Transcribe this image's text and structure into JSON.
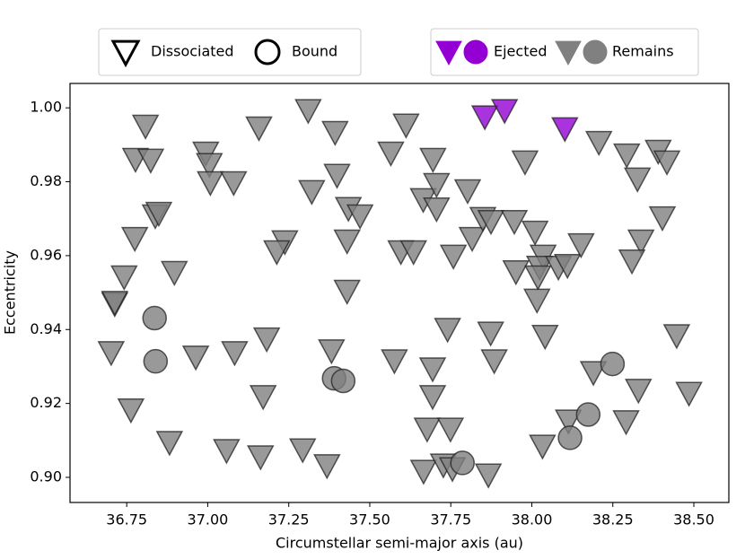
{
  "chart_data": {
    "type": "scatter",
    "xlabel": "Circumstellar semi-major axis (au)",
    "ylabel": "Eccentricity",
    "xlim": [
      36.575,
      38.608
    ],
    "ylim": [
      0.8932,
      1.0066
    ],
    "xticks": [
      36.75,
      {
        "value": 37.0,
        "label": "37.00"
      },
      37.25,
      {
        "value": 37.5,
        "label": "37.50"
      },
      37.75,
      {
        "value": 38.0,
        "label": "38.00"
      },
      38.25,
      {
        "value": 38.5,
        "label": "38.50"
      }
    ],
    "yticks": [
      {
        "value": 0.9,
        "label": "0.90"
      },
      0.92,
      0.94,
      0.96,
      0.98,
      {
        "value": 1.0,
        "label": "1.00"
      }
    ],
    "legend": {
      "shapes": [
        {
          "label": "Dissociated",
          "marker": "v"
        },
        {
          "label": "Bound",
          "marker": "o"
        }
      ],
      "colors": [
        {
          "label": "Ejected",
          "color": "#9400d3"
        },
        {
          "label": "Remains",
          "color": "#808080"
        }
      ]
    },
    "series": [
      {
        "marker": "v",
        "color": "#808080",
        "x": [
          36.808,
          36.777,
          36.824,
          36.838,
          36.849,
          36.775,
          36.742,
          36.897,
          36.713,
          36.713,
          36.702,
          36.763,
          36.882,
          36.994,
          37.005,
          37.008,
          37.08,
          37.158,
          36.963,
          37.083,
          37.182,
          37.171,
          37.058,
          37.163,
          37.293,
          37.368,
          37.31,
          37.393,
          37.399,
          37.321,
          37.434,
          37.47,
          37.238,
          37.213,
          37.43,
          37.43,
          37.382,
          37.576,
          37.565,
          37.612,
          37.596,
          37.635,
          37.665,
          37.695,
          37.706,
          37.706,
          37.758,
          37.802,
          37.816,
          37.849,
          37.874,
          37.946,
          37.951,
          37.979,
          37.74,
          37.873,
          37.884,
          37.694,
          37.694,
          37.677,
          37.749,
          37.666,
          37.727,
          37.755,
          37.866,
          38.01,
          38.035,
          38.024,
          38.019,
          38.016,
          38.082,
          38.11,
          38.152,
          38.041,
          38.033,
          38.113,
          38.19,
          38.207,
          38.293,
          38.326,
          38.39,
          38.417,
          38.403,
          38.337,
          38.309,
          38.329,
          38.291,
          38.447,
          38.485
        ],
        "values": [
          0.9951,
          0.9861,
          0.9859,
          0.9708,
          0.9715,
          0.9647,
          0.9543,
          0.9555,
          0.947,
          0.9474,
          0.9338,
          0.9183,
          0.9095,
          0.9878,
          0.9847,
          0.9798,
          0.9798,
          0.9946,
          0.9326,
          0.9338,
          0.9375,
          0.9219,
          0.9073,
          0.9056,
          0.9075,
          0.9032,
          0.9993,
          0.9934,
          0.9818,
          0.9774,
          0.9728,
          0.9708,
          0.9638,
          0.9611,
          0.964,
          0.9504,
          0.9343,
          0.9316,
          0.9878,
          0.9954,
          0.9611,
          0.9611,
          0.9752,
          0.9861,
          0.9793,
          0.9727,
          0.9599,
          0.9776,
          0.9647,
          0.9701,
          0.9693,
          0.9693,
          0.9557,
          0.9854,
          0.9401,
          0.9391,
          0.9316,
          0.9294,
          0.9219,
          0.9131,
          0.9131,
          0.9017,
          0.9034,
          0.9024,
          0.9007,
          0.9664,
          0.9599,
          0.9569,
          0.9543,
          0.948,
          0.9569,
          0.9574,
          0.963,
          0.9382,
          0.9085,
          0.9153,
          0.9284,
          0.9907,
          0.9873,
          0.9808,
          0.9883,
          0.9854,
          0.9703,
          0.964,
          0.9586,
          0.9236,
          0.9151,
          0.9384,
          0.9228
        ]
      },
      {
        "marker": "o",
        "color": "#808080",
        "x": [
          36.836,
          36.839,
          37.39,
          37.418,
          37.786,
          38.249,
          38.174,
          38.118
        ],
        "values": [
          0.9431,
          0.9314,
          0.9268,
          0.9261,
          0.9039,
          0.9307,
          0.917,
          0.9107
        ]
      },
      {
        "marker": "v",
        "color": "#9400d3",
        "x": [
          37.855,
          37.916,
          38.102
        ],
        "values": [
          0.9976,
          0.9993,
          0.9944
        ]
      }
    ]
  }
}
